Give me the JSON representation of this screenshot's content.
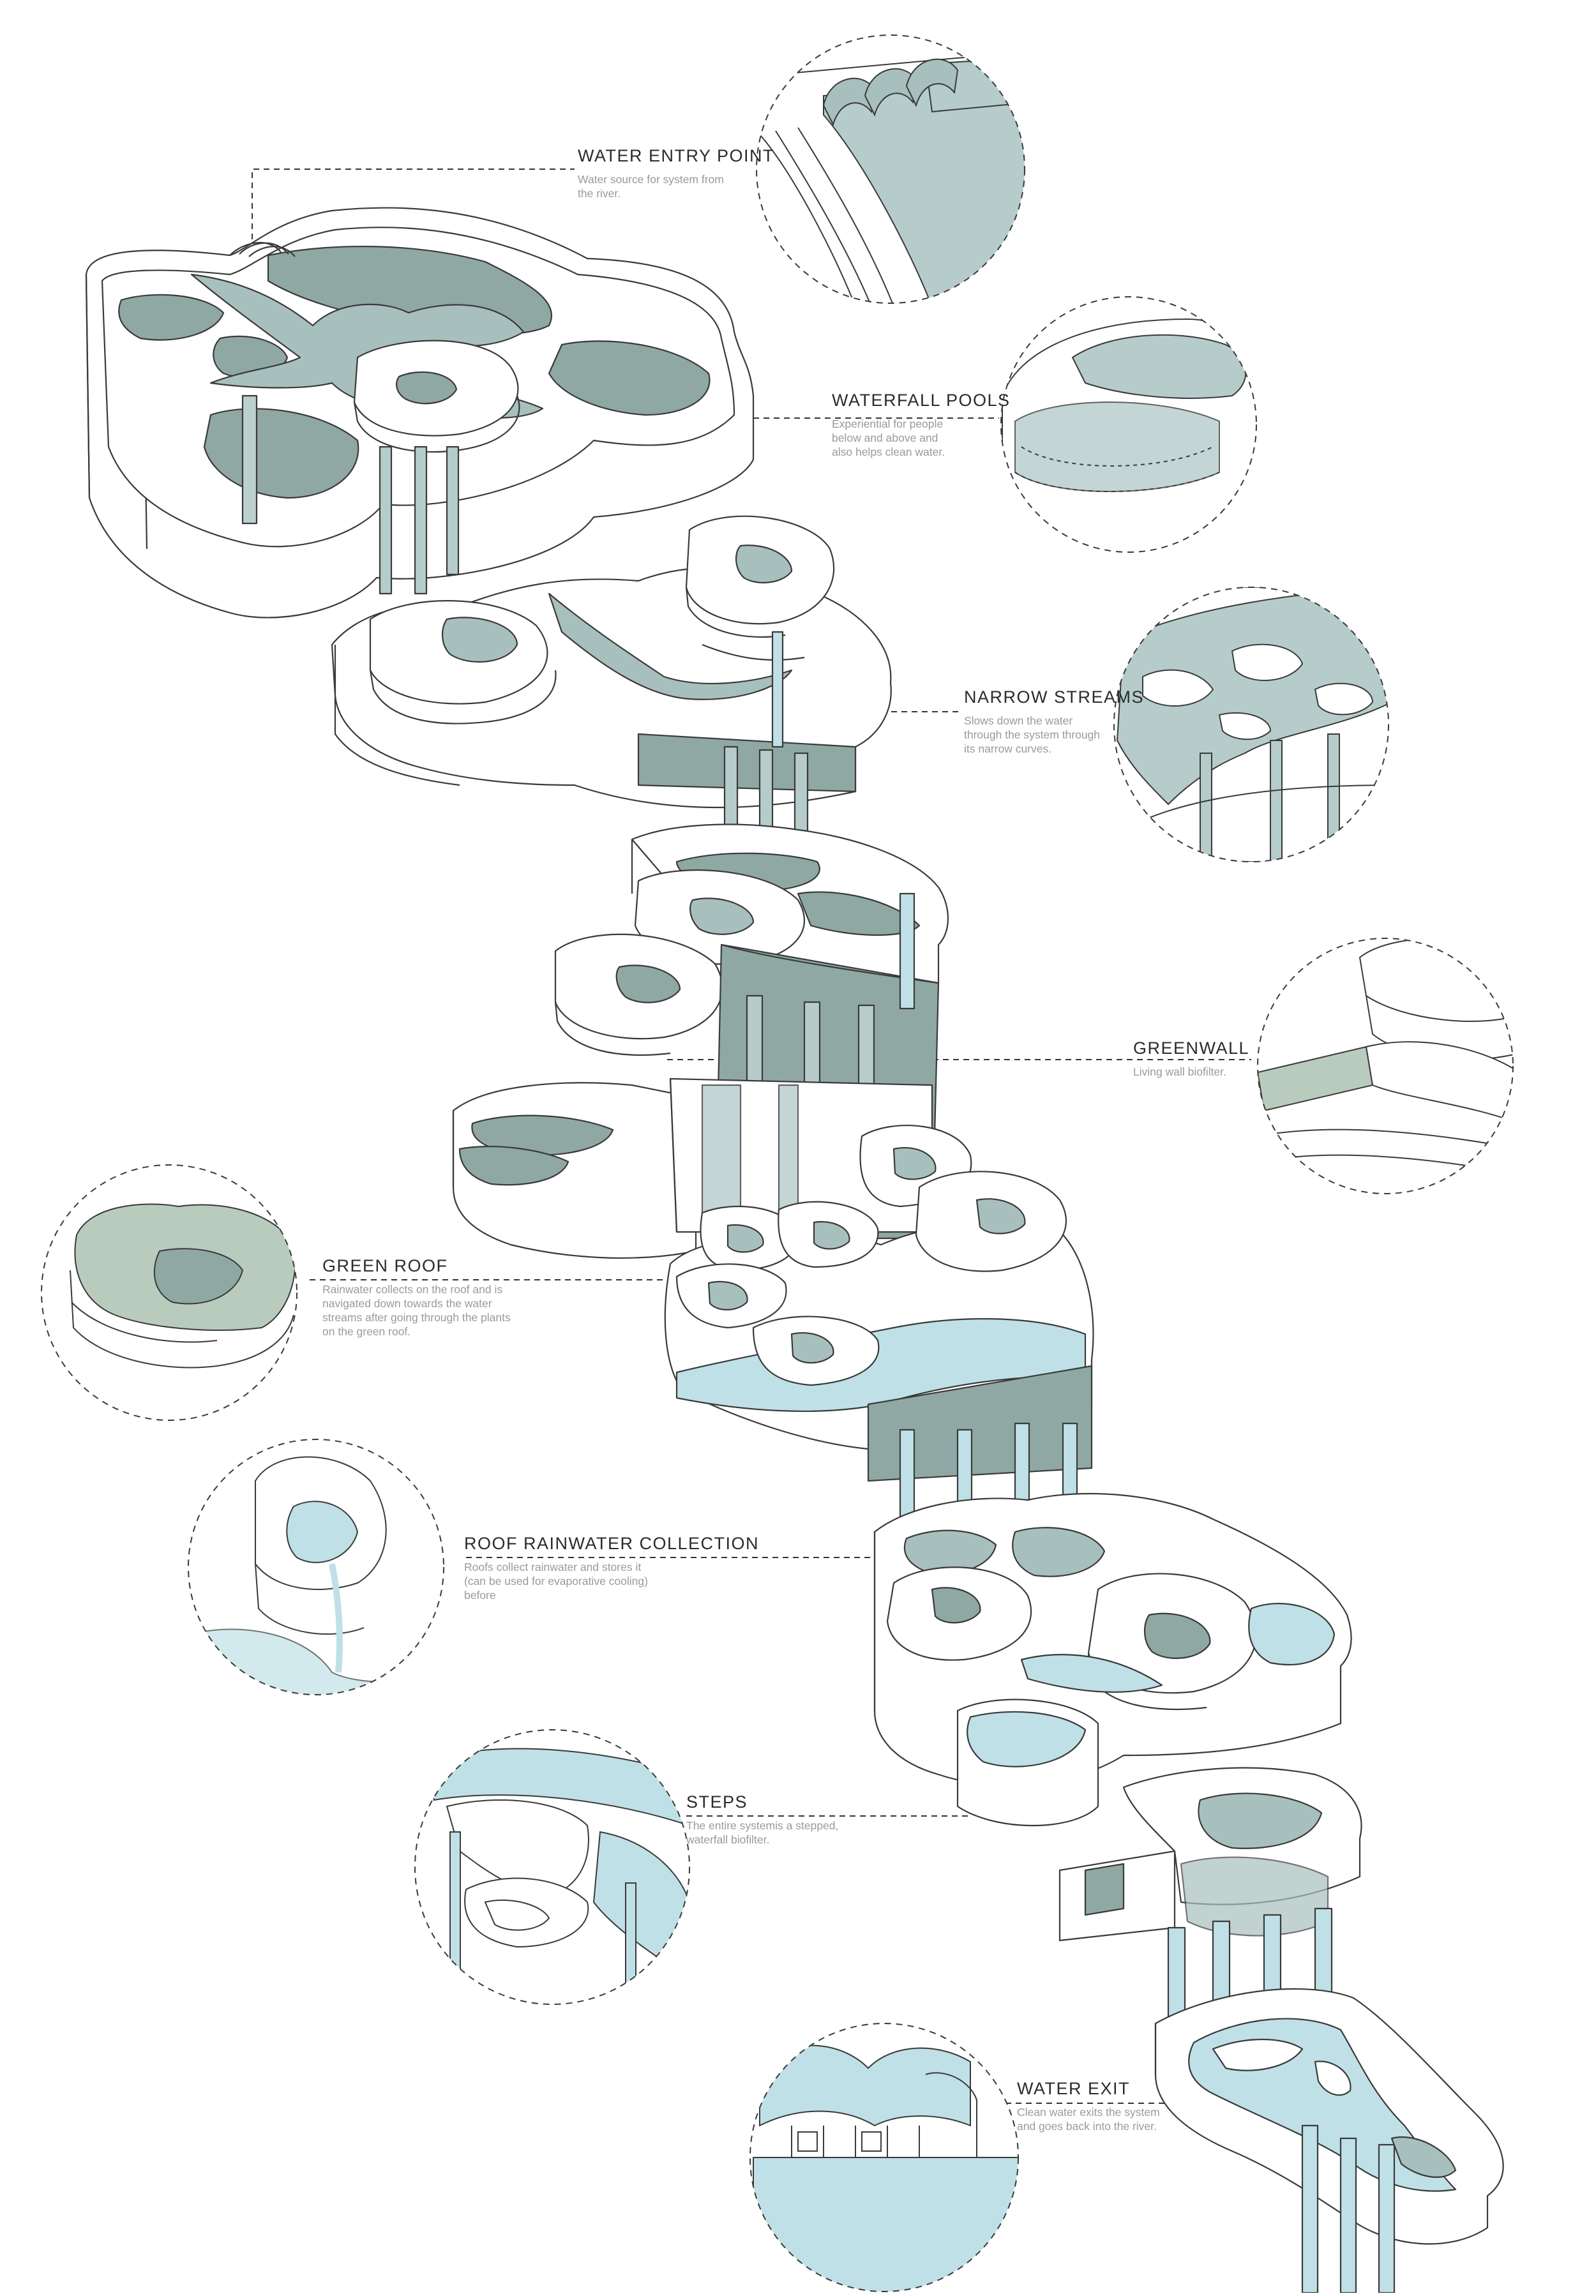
{
  "colors": {
    "stroke": "#3a3a3a",
    "water_dark": "#8fa8a4",
    "water_mid": "#b5cccb",
    "water_light": "#bfe0e6",
    "green_roof": "#b9cbbd",
    "text_title": "#2b2b2b",
    "text_body": "#9a9a9a"
  },
  "labels": [
    {
      "title": "WATER ENTRY POINT",
      "lines": [
        "Water source for system from",
        "the river."
      ]
    },
    {
      "title": "WATERFALL POOLS",
      "lines": [
        "Experiential for people",
        "below and above and",
        "also helps clean water."
      ]
    },
    {
      "title": "NARROW STREAMS",
      "lines": [
        "Slows down the water",
        "through the system through",
        "its narrow curves."
      ]
    },
    {
      "title": "GREENWALL",
      "lines": [
        "Living wall biofilter."
      ]
    },
    {
      "title": "GREEN ROOF",
      "lines": [
        "Rainwater collects on the roof and is",
        "navigated down towards the water",
        "streams after going through the plants",
        "on the green roof."
      ]
    },
    {
      "title": "ROOF RAINWATER COLLECTION",
      "lines": [
        "Roofs collect rainwater and stores it",
        "(can be used for evaporative cooling)",
        "before"
      ]
    },
    {
      "title": "STEPS",
      "lines": [
        "The entire systemis a stepped,",
        "waterfall biofilter."
      ]
    },
    {
      "title": "WATER EXIT",
      "lines": [
        "Clean water exits the system",
        "and goes back into the river."
      ]
    }
  ],
  "detail_circles": [
    {
      "name": "water-entry-detail"
    },
    {
      "name": "waterfall-pools-detail"
    },
    {
      "name": "narrow-streams-detail"
    },
    {
      "name": "greenwall-detail"
    },
    {
      "name": "green-roof-detail"
    },
    {
      "name": "roof-rainwater-detail"
    },
    {
      "name": "steps-detail"
    },
    {
      "name": "water-exit-detail"
    }
  ]
}
